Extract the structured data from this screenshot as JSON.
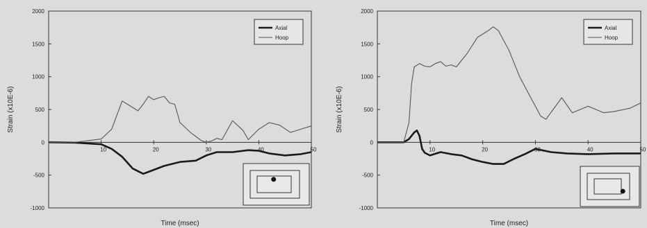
{
  "chart_data": [
    {
      "type": "line",
      "xlabel": "Time (msec)",
      "ylabel": "Strain (x10E-6)",
      "xlim": [
        0,
        50
      ],
      "ylim": [
        -1000,
        2000
      ],
      "xticks": [
        "10",
        "20",
        "30",
        "40",
        "50"
      ],
      "yticks": [
        "-1000",
        "-500",
        "0",
        "500",
        "1000",
        "1500",
        "2000"
      ],
      "legend": {
        "position": "top-right",
        "entries": [
          "Axial",
          "Hoop"
        ]
      },
      "inset": {
        "position": "bottom-right",
        "dot": "center"
      },
      "series": [
        {
          "name": "Axial",
          "x": [
            0,
            5,
            10,
            12,
            14,
            16,
            18,
            20,
            22,
            25,
            28,
            30,
            32,
            35,
            38,
            40,
            42,
            45,
            48,
            50
          ],
          "y": [
            0,
            -5,
            -30,
            -100,
            -220,
            -400,
            -480,
            -420,
            -360,
            -300,
            -280,
            -200,
            -150,
            -150,
            -120,
            -130,
            -170,
            -200,
            -180,
            -150
          ]
        },
        {
          "name": "Hoop",
          "x": [
            0,
            5,
            10,
            12,
            14,
            15,
            17,
            18,
            19,
            20,
            21,
            22,
            23,
            24,
            25,
            27,
            29,
            30,
            31,
            32,
            33,
            35,
            37,
            38,
            40,
            42,
            44,
            46,
            48,
            50
          ],
          "y": [
            0,
            0,
            50,
            200,
            630,
            580,
            480,
            580,
            700,
            650,
            680,
            700,
            600,
            580,
            300,
            150,
            30,
            0,
            20,
            60,
            40,
            330,
            180,
            40,
            200,
            300,
            260,
            150,
            200,
            250
          ]
        }
      ]
    },
    {
      "type": "line",
      "xlabel": "Time (msec)",
      "ylabel": "Strain (x10E-6)",
      "xlim": [
        0,
        50
      ],
      "ylim": [
        -1000,
        2000
      ],
      "xticks": [
        "10",
        "20",
        "30",
        "40",
        "50"
      ],
      "yticks": [
        "-1000",
        "-500",
        "0",
        "500",
        "1000",
        "1500",
        "2000"
      ],
      "legend": {
        "position": "top-right",
        "entries": [
          "Axial",
          "Hoop"
        ]
      },
      "inset": {
        "position": "bottom-right",
        "dot": "lower-right"
      },
      "series": [
        {
          "name": "Axial",
          "x": [
            0,
            3,
            5,
            6,
            7,
            7.5,
            8,
            8.5,
            9,
            10,
            12,
            14,
            16,
            18,
            20,
            22,
            24,
            26,
            28,
            30,
            33,
            36,
            40,
            45,
            50
          ],
          "y": [
            0,
            0,
            0,
            50,
            150,
            180,
            100,
            -100,
            -160,
            -200,
            -150,
            -180,
            -200,
            -260,
            -300,
            -330,
            -330,
            -250,
            -180,
            -100,
            -150,
            -170,
            -180,
            -170,
            -170
          ]
        },
        {
          "name": "Hoop",
          "x": [
            0,
            2,
            4,
            5,
            6,
            6.5,
            7,
            8,
            9,
            10,
            11,
            12,
            13,
            14,
            15,
            17,
            19,
            21,
            22,
            23,
            25,
            27,
            29,
            31,
            32,
            35,
            37,
            40,
            43,
            45,
            48,
            50
          ],
          "y": [
            0,
            0,
            0,
            0,
            300,
            900,
            1150,
            1200,
            1160,
            1150,
            1200,
            1230,
            1160,
            1180,
            1150,
            1350,
            1600,
            1700,
            1760,
            1700,
            1400,
            1000,
            700,
            400,
            350,
            680,
            450,
            550,
            450,
            470,
            520,
            600
          ]
        }
      ]
    }
  ]
}
